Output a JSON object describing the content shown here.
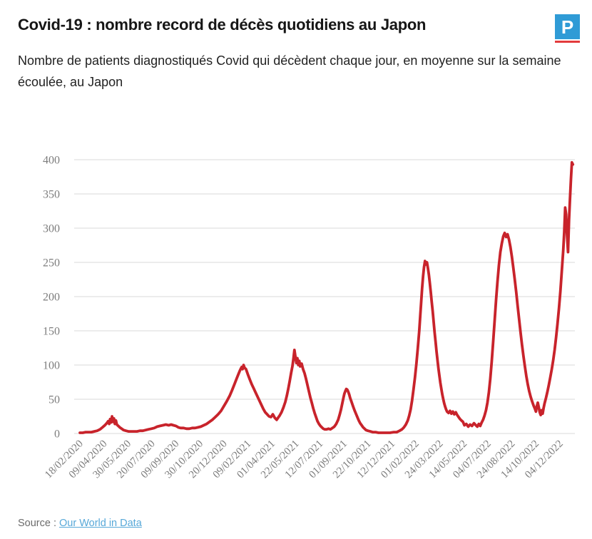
{
  "header": {
    "title": "Covid-19 : nombre record de décès quotidiens au Japon",
    "subtitle": "Nombre de patients diagnostiqués Covid qui décèdent chaque jour, en moyenne sur la semaine écoulée, au Japon",
    "logo_letter": "P"
  },
  "footer": {
    "source_label": "Source :",
    "source_link": "Our World in Data"
  },
  "colors": {
    "line": "#c8232b",
    "grid": "#dadada",
    "axis_text": "#7d7d7d",
    "logo_blue": "#2f9bd6",
    "logo_red": "#e23b3c",
    "link_blue": "#57a8d8"
  },
  "chart_data": {
    "type": "line",
    "title": "",
    "xlabel": "",
    "ylabel": "",
    "grid": "horizontal",
    "legend": "none",
    "ylim": [
      0,
      400
    ],
    "y_ticks": [
      0,
      50,
      100,
      150,
      200,
      250,
      300,
      350,
      400
    ],
    "x_tick_interval_days": 50,
    "x_tick_labels": [
      "18/02/2020",
      "09/04/2020",
      "30/05/2020",
      "20/07/2020",
      "09/09/2020",
      "30/10/2020",
      "20/12/2020",
      "09/02/2021",
      "01/04/2021",
      "22/05/2021",
      "12/07/2021",
      "01/09/2021",
      "22/10/2021",
      "12/12/2021",
      "01/02/2022",
      "24/03/2022",
      "14/05/2022",
      "04/07/2022",
      "24/08/2022",
      "14/10/2022",
      "04/12/2022"
    ],
    "series": [
      {
        "color": "#c8232b",
        "points": [
          [
            0,
            1
          ],
          [
            6,
            1
          ],
          [
            12,
            2
          ],
          [
            18,
            2
          ],
          [
            24,
            2
          ],
          [
            30,
            3
          ],
          [
            36,
            4
          ],
          [
            42,
            6
          ],
          [
            47,
            9
          ],
          [
            52,
            12
          ],
          [
            56,
            15
          ],
          [
            59,
            18
          ],
          [
            61,
            14
          ],
          [
            63,
            21
          ],
          [
            65,
            16
          ],
          [
            67,
            25
          ],
          [
            69,
            17
          ],
          [
            71,
            22
          ],
          [
            73,
            14
          ],
          [
            75,
            19
          ],
          [
            77,
            13
          ],
          [
            80,
            11
          ],
          [
            83,
            9
          ],
          [
            87,
            7
          ],
          [
            91,
            5
          ],
          [
            96,
            4
          ],
          [
            101,
            3
          ],
          [
            107,
            3
          ],
          [
            113,
            3
          ],
          [
            119,
            3
          ],
          [
            125,
            4
          ],
          [
            131,
            4
          ],
          [
            137,
            5
          ],
          [
            143,
            6
          ],
          [
            149,
            7
          ],
          [
            155,
            8
          ],
          [
            161,
            10
          ],
          [
            167,
            11
          ],
          [
            173,
            12
          ],
          [
            179,
            13
          ],
          [
            185,
            12
          ],
          [
            190,
            13
          ],
          [
            195,
            12
          ],
          [
            200,
            11
          ],
          [
            205,
            9
          ],
          [
            210,
            8
          ],
          [
            216,
            8
          ],
          [
            222,
            7
          ],
          [
            228,
            7
          ],
          [
            234,
            8
          ],
          [
            240,
            8
          ],
          [
            246,
            9
          ],
          [
            252,
            10
          ],
          [
            258,
            12
          ],
          [
            264,
            14
          ],
          [
            270,
            17
          ],
          [
            276,
            20
          ],
          [
            282,
            24
          ],
          [
            288,
            28
          ],
          [
            294,
            33
          ],
          [
            300,
            40
          ],
          [
            306,
            47
          ],
          [
            312,
            55
          ],
          [
            317,
            63
          ],
          [
            322,
            72
          ],
          [
            327,
            81
          ],
          [
            331,
            88
          ],
          [
            334,
            93
          ],
          [
            337,
            97
          ],
          [
            339,
            94
          ],
          [
            341,
            100
          ],
          [
            343,
            96
          ],
          [
            346,
            94
          ],
          [
            350,
            86
          ],
          [
            354,
            79
          ],
          [
            358,
            72
          ],
          [
            362,
            66
          ],
          [
            366,
            60
          ],
          [
            370,
            54
          ],
          [
            374,
            48
          ],
          [
            378,
            42
          ],
          [
            382,
            36
          ],
          [
            386,
            31
          ],
          [
            390,
            28
          ],
          [
            394,
            25
          ],
          [
            398,
            24
          ],
          [
            402,
            28
          ],
          [
            406,
            23
          ],
          [
            410,
            20
          ],
          [
            413,
            23
          ],
          [
            416,
            26
          ],
          [
            420,
            31
          ],
          [
            424,
            38
          ],
          [
            428,
            46
          ],
          [
            431,
            55
          ],
          [
            434,
            65
          ],
          [
            437,
            76
          ],
          [
            440,
            88
          ],
          [
            443,
            99
          ],
          [
            445,
            110
          ],
          [
            447,
            122
          ],
          [
            449,
            112
          ],
          [
            451,
            103
          ],
          [
            453,
            110
          ],
          [
            455,
            100
          ],
          [
            457,
            106
          ],
          [
            459,
            98
          ],
          [
            462,
            102
          ],
          [
            465,
            94
          ],
          [
            468,
            88
          ],
          [
            471,
            80
          ],
          [
            474,
            71
          ],
          [
            477,
            62
          ],
          [
            480,
            53
          ],
          [
            483,
            45
          ],
          [
            486,
            37
          ],
          [
            489,
            30
          ],
          [
            492,
            24
          ],
          [
            495,
            18
          ],
          [
            498,
            14
          ],
          [
            501,
            11
          ],
          [
            504,
            9
          ],
          [
            507,
            7
          ],
          [
            510,
            6
          ],
          [
            514,
            6
          ],
          [
            518,
            7
          ],
          [
            522,
            6
          ],
          [
            526,
            8
          ],
          [
            530,
            10
          ],
          [
            534,
            14
          ],
          [
            538,
            20
          ],
          [
            541,
            27
          ],
          [
            544,
            35
          ],
          [
            547,
            45
          ],
          [
            549,
            52
          ],
          [
            551,
            58
          ],
          [
            553,
            62
          ],
          [
            555,
            65
          ],
          [
            557,
            64
          ],
          [
            559,
            61
          ],
          [
            561,
            57
          ],
          [
            563,
            52
          ],
          [
            566,
            46
          ],
          [
            569,
            40
          ],
          [
            572,
            34
          ],
          [
            575,
            29
          ],
          [
            578,
            24
          ],
          [
            581,
            19
          ],
          [
            584,
            15
          ],
          [
            587,
            12
          ],
          [
            590,
            9
          ],
          [
            593,
            7
          ],
          [
            596,
            5
          ],
          [
            600,
            4
          ],
          [
            605,
            3
          ],
          [
            610,
            2
          ],
          [
            616,
            2
          ],
          [
            622,
            1
          ],
          [
            630,
            1
          ],
          [
            638,
            1
          ],
          [
            646,
            1
          ],
          [
            654,
            2
          ],
          [
            660,
            2
          ],
          [
            666,
            4
          ],
          [
            671,
            6
          ],
          [
            675,
            9
          ],
          [
            679,
            13
          ],
          [
            683,
            19
          ],
          [
            686,
            26
          ],
          [
            689,
            35
          ],
          [
            692,
            48
          ],
          [
            695,
            64
          ],
          [
            698,
            82
          ],
          [
            701,
            102
          ],
          [
            704,
            125
          ],
          [
            707,
            150
          ],
          [
            709,
            172
          ],
          [
            711,
            192
          ],
          [
            713,
            212
          ],
          [
            715,
            230
          ],
          [
            717,
            243
          ],
          [
            719,
            252
          ],
          [
            721,
            247
          ],
          [
            723,
            250
          ],
          [
            725,
            242
          ],
          [
            727,
            232
          ],
          [
            729,
            220
          ],
          [
            731,
            206
          ],
          [
            733,
            192
          ],
          [
            735,
            178
          ],
          [
            737,
            163
          ],
          [
            739,
            148
          ],
          [
            741,
            134
          ],
          [
            743,
            120
          ],
          [
            745,
            107
          ],
          [
            747,
            95
          ],
          [
            749,
            84
          ],
          [
            751,
            74
          ],
          [
            753,
            65
          ],
          [
            755,
            57
          ],
          [
            757,
            50
          ],
          [
            759,
            44
          ],
          [
            761,
            39
          ],
          [
            763,
            35
          ],
          [
            765,
            32
          ],
          [
            768,
            30
          ],
          [
            771,
            33
          ],
          [
            774,
            29
          ],
          [
            777,
            32
          ],
          [
            780,
            28
          ],
          [
            783,
            31
          ],
          [
            786,
            27
          ],
          [
            789,
            24
          ],
          [
            792,
            21
          ],
          [
            795,
            19
          ],
          [
            798,
            17
          ],
          [
            801,
            12
          ],
          [
            805,
            14
          ],
          [
            809,
            10
          ],
          [
            813,
            13
          ],
          [
            817,
            11
          ],
          [
            821,
            15
          ],
          [
            825,
            12
          ],
          [
            828,
            10
          ],
          [
            831,
            14
          ],
          [
            834,
            11
          ],
          [
            837,
            16
          ],
          [
            840,
            20
          ],
          [
            843,
            26
          ],
          [
            846,
            34
          ],
          [
            849,
            45
          ],
          [
            852,
            60
          ],
          [
            855,
            80
          ],
          [
            858,
            105
          ],
          [
            861,
            135
          ],
          [
            864,
            165
          ],
          [
            867,
            195
          ],
          [
            870,
            222
          ],
          [
            873,
            246
          ],
          [
            876,
            265
          ],
          [
            879,
            278
          ],
          [
            882,
            288
          ],
          [
            885,
            293
          ],
          [
            888,
            287
          ],
          [
            891,
            291
          ],
          [
            894,
            283
          ],
          [
            897,
            272
          ],
          [
            900,
            258
          ],
          [
            903,
            242
          ],
          [
            906,
            225
          ],
          [
            909,
            206
          ],
          [
            912,
            186
          ],
          [
            915,
            167
          ],
          [
            918,
            148
          ],
          [
            921,
            130
          ],
          [
            924,
            113
          ],
          [
            927,
            98
          ],
          [
            930,
            84
          ],
          [
            933,
            72
          ],
          [
            936,
            62
          ],
          [
            939,
            54
          ],
          [
            942,
            47
          ],
          [
            945,
            41
          ],
          [
            948,
            36
          ],
          [
            950,
            32
          ],
          [
            952,
            40
          ],
          [
            954,
            45
          ],
          [
            956,
            38
          ],
          [
            958,
            31
          ],
          [
            960,
            27
          ],
          [
            962,
            34
          ],
          [
            964,
            29
          ],
          [
            966,
            37
          ],
          [
            968,
            44
          ],
          [
            971,
            52
          ],
          [
            974,
            61
          ],
          [
            977,
            71
          ],
          [
            980,
            82
          ],
          [
            983,
            94
          ],
          [
            986,
            107
          ],
          [
            989,
            122
          ],
          [
            992,
            140
          ],
          [
            995,
            160
          ],
          [
            998,
            183
          ],
          [
            1001,
            208
          ],
          [
            1004,
            238
          ],
          [
            1007,
            268
          ],
          [
            1009,
            295
          ],
          [
            1011,
            330
          ],
          [
            1013,
            320
          ],
          [
            1015,
            288
          ],
          [
            1017,
            265
          ],
          [
            1019,
            312
          ],
          [
            1021,
            342
          ],
          [
            1023,
            372
          ],
          [
            1025,
            396
          ],
          [
            1027,
            393
          ]
        ]
      }
    ]
  }
}
